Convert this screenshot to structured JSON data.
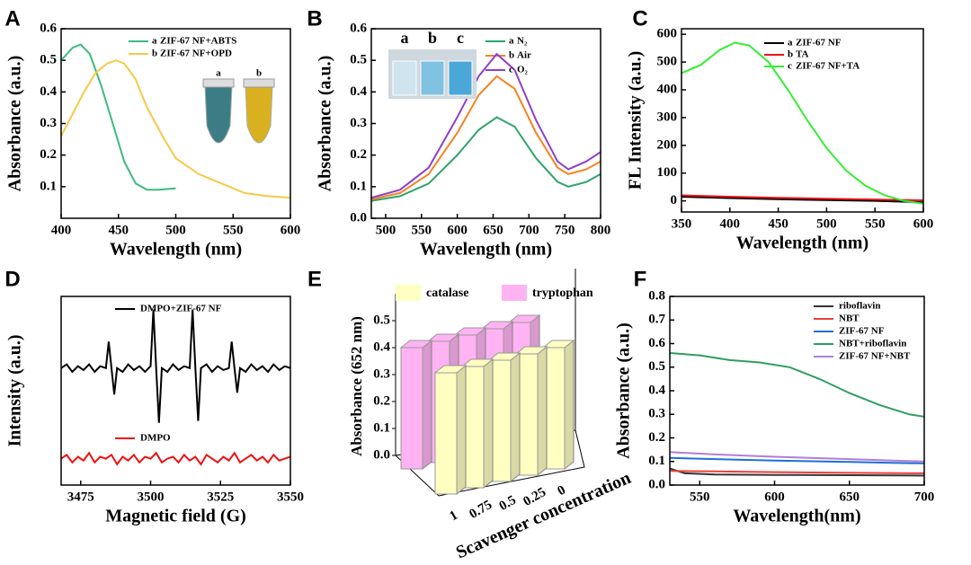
{
  "chart_data": [
    {
      "panel": "A",
      "type": "line",
      "xlabel": "Wavelength (nm)",
      "ylabel": "Absorbance (a.u.)",
      "xlim": [
        400,
        600
      ],
      "xticks": [
        400,
        450,
        500,
        550,
        600
      ],
      "ylim": [
        0,
        0.6
      ],
      "yticks": [
        0.1,
        0.2,
        0.3,
        0.4,
        0.5,
        0.6
      ],
      "series": [
        {
          "letter": "a",
          "name": "ZIF-67 NF+ABTS",
          "color": "#3dba7e",
          "x": [
            400,
            410,
            417,
            425,
            435,
            445,
            455,
            465,
            475,
            485,
            500
          ],
          "values": [
            0.5,
            0.54,
            0.55,
            0.52,
            0.42,
            0.3,
            0.18,
            0.11,
            0.09,
            0.09,
            0.095
          ]
        },
        {
          "letter": "b",
          "name": "ZIF-67 NF+OPD",
          "color": "#f7c948",
          "x": [
            400,
            410,
            420,
            430,
            440,
            448,
            455,
            465,
            475,
            490,
            500,
            520,
            540,
            560,
            580,
            600
          ],
          "values": [
            0.26,
            0.33,
            0.4,
            0.46,
            0.49,
            0.5,
            0.49,
            0.44,
            0.35,
            0.25,
            0.19,
            0.14,
            0.11,
            0.08,
            0.07,
            0.065
          ]
        }
      ]
    },
    {
      "panel": "B",
      "type": "line",
      "xlabel": "Wavelength (nm)",
      "ylabel": "Absorbance (a.u.)",
      "xlim": [
        480,
        800
      ],
      "xticks": [
        500,
        550,
        600,
        650,
        700,
        750,
        800
      ],
      "ylim": [
        0,
        0.6
      ],
      "yticks": [
        {
          "value": 0,
          "label": "0.0"
        },
        0.1,
        0.2,
        0.3,
        0.4,
        0.5,
        0.6
      ],
      "series": [
        {
          "letter": "a",
          "name": "N₂",
          "color": "#2fa36b",
          "x": [
            480,
            520,
            560,
            600,
            630,
            655,
            680,
            710,
            740,
            755,
            780,
            800
          ],
          "values": [
            0.055,
            0.07,
            0.11,
            0.2,
            0.28,
            0.32,
            0.29,
            0.19,
            0.115,
            0.1,
            0.115,
            0.14
          ]
        },
        {
          "letter": "b",
          "name": "Air",
          "color": "#f5821f",
          "x": [
            480,
            520,
            560,
            600,
            630,
            655,
            680,
            710,
            740,
            755,
            780,
            800
          ],
          "values": [
            0.06,
            0.08,
            0.14,
            0.27,
            0.39,
            0.45,
            0.41,
            0.27,
            0.16,
            0.14,
            0.155,
            0.18
          ]
        },
        {
          "letter": "c",
          "name": "O₂",
          "color": "#8e3fc9",
          "x": [
            480,
            520,
            560,
            600,
            630,
            655,
            680,
            710,
            740,
            755,
            780,
            800
          ],
          "values": [
            0.065,
            0.09,
            0.16,
            0.32,
            0.45,
            0.52,
            0.47,
            0.31,
            0.18,
            0.155,
            0.18,
            0.21
          ]
        }
      ]
    },
    {
      "panel": "C",
      "type": "line",
      "xlabel": "Wavelength (nm)",
      "ylabel": "FL Intensity (a.u.)",
      "xlim": [
        350,
        600
      ],
      "xticks": [
        350,
        400,
        450,
        500,
        550,
        600
      ],
      "ylim": [
        -40,
        620
      ],
      "yticks": [
        0,
        100,
        200,
        300,
        400,
        500,
        600
      ],
      "series": [
        {
          "letter": "a",
          "name": "ZIF-67 NF",
          "color": "#000000",
          "x": [
            350,
            400,
            450,
            500,
            550,
            600
          ],
          "values": [
            15,
            10,
            6,
            3,
            0,
            -5
          ]
        },
        {
          "letter": "b",
          "name": "TA",
          "color": "#e8141c",
          "x": [
            350,
            400,
            450,
            500,
            550,
            600
          ],
          "values": [
            20,
            15,
            11,
            8,
            5,
            2
          ]
        },
        {
          "letter": "c",
          "name": "ZIF-67 NF+TA",
          "color": "#33ee33",
          "x": [
            350,
            370,
            390,
            405,
            420,
            440,
            460,
            480,
            500,
            520,
            540,
            560,
            580,
            600
          ],
          "values": [
            460,
            490,
            545,
            570,
            560,
            500,
            400,
            290,
            190,
            110,
            55,
            20,
            0,
            -10
          ]
        }
      ]
    },
    {
      "panel": "D",
      "type": "line",
      "xlabel": "Magnetic field (G)",
      "ylabel": "Intensity (a.u.)",
      "xlim": [
        3468,
        3550
      ],
      "xticks": [
        3475,
        3500,
        3525,
        3550
      ],
      "ylim": [
        0,
        10
      ],
      "series": [
        {
          "name": "DMPO+ZIF-67 NF",
          "color": "#000000",
          "x": [
            3468,
            3470,
            3472,
            3474,
            3476,
            3478,
            3480,
            3482,
            3484,
            3485,
            3486,
            3487,
            3488,
            3490,
            3492,
            3494,
            3496,
            3498,
            3500,
            3501,
            3502,
            3503,
            3504,
            3506,
            3508,
            3510,
            3512,
            3514,
            3515,
            3516,
            3517,
            3518,
            3520,
            3522,
            3524,
            3526,
            3528,
            3529,
            3530,
            3531,
            3532,
            3534,
            3536,
            3538,
            3540,
            3542,
            3544,
            3546,
            3548,
            3550
          ],
          "values": [
            6.2,
            6.4,
            6.0,
            6.3,
            6.1,
            6.4,
            6.0,
            6.3,
            6.2,
            7.6,
            6.2,
            4.8,
            6.2,
            6.0,
            6.4,
            6.1,
            6.3,
            6.0,
            6.3,
            9.3,
            6.2,
            3.3,
            6.2,
            6.0,
            6.4,
            6.1,
            6.3,
            6.2,
            9.3,
            6.2,
            3.4,
            6.2,
            6.4,
            6.0,
            6.3,
            6.1,
            6.2,
            7.6,
            6.2,
            4.9,
            6.2,
            6.0,
            6.4,
            6.1,
            6.3,
            6.0,
            6.4,
            6.1,
            6.3,
            6.2
          ]
        },
        {
          "name": "DMPO",
          "color": "#ee1111",
          "x": [
            3468,
            3470,
            3472,
            3474,
            3476,
            3478,
            3480,
            3482,
            3484,
            3486,
            3488,
            3490,
            3492,
            3494,
            3496,
            3498,
            3500,
            3502,
            3504,
            3506,
            3508,
            3510,
            3512,
            3514,
            3516,
            3518,
            3520,
            3522,
            3524,
            3526,
            3528,
            3530,
            3532,
            3534,
            3536,
            3538,
            3540,
            3542,
            3544,
            3546,
            3548,
            3550
          ],
          "values": [
            1.4,
            1.6,
            1.2,
            1.5,
            1.3,
            1.7,
            1.2,
            1.5,
            1.4,
            1.6,
            1.1,
            1.5,
            1.3,
            1.6,
            1.2,
            1.5,
            1.4,
            1.7,
            1.2,
            1.4,
            1.5,
            1.2,
            1.6,
            1.3,
            1.5,
            1.1,
            1.6,
            1.4,
            1.2,
            1.5,
            1.3,
            1.7,
            1.2,
            1.4,
            1.6,
            1.3,
            1.5,
            1.2,
            1.6,
            1.3,
            1.4,
            1.5
          ]
        }
      ]
    },
    {
      "panel": "E",
      "type": "bar",
      "xlabel": "Scavenger concentration",
      "ylabel": "Absorbance (652 nm)",
      "categories": [
        "1",
        "0.75",
        "0.5",
        "0.25",
        "0"
      ],
      "ylim": [
        0,
        0.6
      ],
      "yticks": [
        {
          "value": 0,
          "label": "0.0"
        },
        0.1,
        0.2,
        0.3,
        0.4,
        0.5
      ],
      "series": [
        {
          "name": "catalase",
          "color": "#ffffc2",
          "values": [
            0.45,
            0.45,
            0.45,
            0.45,
            0.45
          ]
        },
        {
          "name": "tryptophan",
          "color": "#ffb3f2",
          "values": [
            0.45,
            0.45,
            0.45,
            0.45,
            0.45
          ]
        }
      ]
    },
    {
      "panel": "F",
      "type": "line",
      "xlabel": "Wavelength(nm)",
      "ylabel": "Absorbance (a.u.)",
      "xlim": [
        530,
        700
      ],
      "xticks": [
        550,
        600,
        650,
        700
      ],
      "ylim": [
        0,
        0.8
      ],
      "yticks": [
        {
          "value": 0,
          "label": "0.0"
        },
        0.1,
        0.2,
        0.3,
        0.4,
        0.5,
        0.6,
        0.7,
        0.8
      ],
      "series": [
        {
          "name": "riboflavin",
          "color": "#333333",
          "x": [
            530,
            540,
            560,
            600,
            650,
            700
          ],
          "values": [
            0.07,
            0.05,
            0.045,
            0.043,
            0.042,
            0.04
          ]
        },
        {
          "name": "NBT",
          "color": "#e84040",
          "x": [
            530,
            560,
            600,
            650,
            700
          ],
          "values": [
            0.06,
            0.058,
            0.055,
            0.052,
            0.05
          ]
        },
        {
          "name": "ZIF-67 NF",
          "color": "#1f6fd6",
          "x": [
            530,
            560,
            600,
            650,
            700
          ],
          "values": [
            0.115,
            0.11,
            0.104,
            0.098,
            0.092
          ]
        },
        {
          "name": "NBT+riboflavin",
          "color": "#2e9e62",
          "x": [
            530,
            550,
            570,
            590,
            610,
            630,
            650,
            670,
            690,
            700
          ],
          "values": [
            0.56,
            0.55,
            0.53,
            0.52,
            0.5,
            0.45,
            0.39,
            0.34,
            0.3,
            0.29
          ]
        },
        {
          "name": "ZIF-67 NF+NBT",
          "color": "#b07ed8",
          "x": [
            530,
            560,
            600,
            650,
            700
          ],
          "values": [
            0.14,
            0.13,
            0.12,
            0.11,
            0.1
          ]
        }
      ]
    }
  ]
}
